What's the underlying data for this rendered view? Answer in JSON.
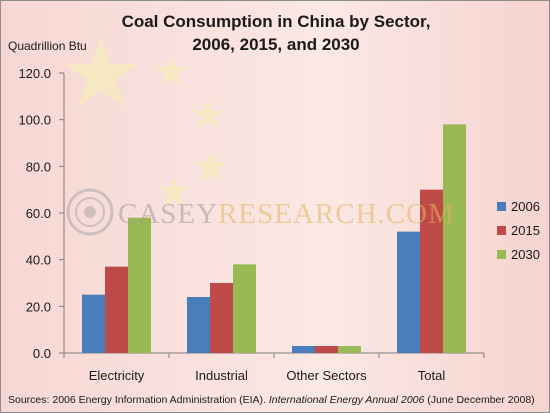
{
  "chart_data": {
    "type": "bar",
    "title_line1": "Coal Consumption in China by Sector,",
    "title_line2": "2006, 2015, and 2030",
    "ylabel": "Quadrillion Btu",
    "ylim": [
      0,
      120
    ],
    "yticks": [
      "0.0",
      "20.0",
      "40.0",
      "60.0",
      "80.0",
      "100.0",
      "120.0"
    ],
    "ytick_values": [
      0,
      20,
      40,
      60,
      80,
      100,
      120
    ],
    "categories": [
      "Electricity",
      "Industrial",
      "Other Sectors",
      "Total"
    ],
    "series": [
      {
        "name": "2006",
        "color": "#4a7ebb",
        "values": [
          25,
          24,
          3,
          52
        ]
      },
      {
        "name": "2015",
        "color": "#be4b48",
        "values": [
          37,
          30,
          3,
          70
        ]
      },
      {
        "name": "2030",
        "color": "#98b954",
        "values": [
          58,
          38,
          3,
          98
        ]
      }
    ],
    "grid": false,
    "legend_position": "right"
  },
  "watermark": {
    "text": "CASEYRESEARCH.COM",
    "logo_icon": "casey-research-logo-icon"
  },
  "source": {
    "prefix": "Sources: 2006 Energy Information Administration (EIA). ",
    "italic": "International Energy Annual 2006",
    "suffix": " (June December 2008)"
  }
}
